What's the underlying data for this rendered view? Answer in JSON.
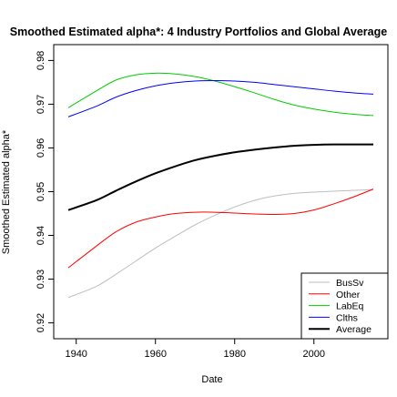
{
  "chart_data": {
    "type": "line",
    "title": "Smoothed Estimated alpha*: 4 Industry Portfolios and Global Average",
    "xlabel": "Date",
    "ylabel": "Smoothed Estimated alpha*",
    "xlim": [
      1938,
      2015
    ],
    "ylim": [
      0.9195,
      0.9805
    ],
    "x_ticks": [
      1940,
      1960,
      1980,
      2000
    ],
    "y_ticks": [
      0.92,
      0.93,
      0.94,
      0.95,
      0.96,
      0.97,
      0.98
    ],
    "grid": false,
    "legend_position": "bottom-right",
    "x": [
      1938,
      1945,
      1950,
      1955,
      1960,
      1965,
      1970,
      1975,
      1980,
      1985,
      1990,
      1995,
      2000,
      2005,
      2010,
      2015
    ],
    "series": [
      {
        "name": "BusSv",
        "color": "#bebebe",
        "width": 1,
        "values": [
          0.9258,
          0.9283,
          0.9311,
          0.9341,
          0.9371,
          0.9398,
          0.9424,
          0.9446,
          0.9465,
          0.948,
          0.949,
          0.9496,
          0.9499,
          0.9501,
          0.9503,
          0.9505
        ]
      },
      {
        "name": "Other",
        "color": "#ff0000",
        "width": 1,
        "values": [
          0.9326,
          0.9375,
          0.9408,
          0.943,
          0.9442,
          0.945,
          0.9453,
          0.9453,
          0.9451,
          0.9449,
          0.9448,
          0.945,
          0.9458,
          0.9472,
          0.9488,
          0.9506
        ]
      },
      {
        "name": "LabEq",
        "color": "#00cd00",
        "width": 1,
        "values": [
          0.9692,
          0.973,
          0.9755,
          0.9767,
          0.9771,
          0.9769,
          0.9763,
          0.9753,
          0.974,
          0.9726,
          0.9711,
          0.9698,
          0.9689,
          0.9682,
          0.9677,
          0.9674
        ]
      },
      {
        "name": "Clths",
        "color": "#0000ff",
        "width": 1,
        "values": [
          0.9671,
          0.9695,
          0.9716,
          0.9731,
          0.9742,
          0.9749,
          0.9753,
          0.9754,
          0.9753,
          0.975,
          0.9745,
          0.974,
          0.9735,
          0.973,
          0.9726,
          0.9723
        ]
      },
      {
        "name": "Average",
        "color": "#000000",
        "width": 2,
        "values": [
          0.9458,
          0.948,
          0.9502,
          0.9523,
          0.9542,
          0.9558,
          0.9572,
          0.9582,
          0.959,
          0.9596,
          0.9601,
          0.9605,
          0.9607,
          0.9608,
          0.9608,
          0.9608
        ]
      }
    ]
  }
}
